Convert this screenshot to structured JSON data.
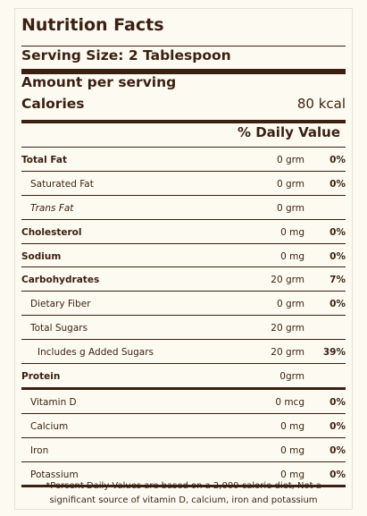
{
  "label": {
    "title": "Nutrition Facts",
    "serving_size": "Serving Size: 2 Tablespoon",
    "amount_per_serving": "Amount per serving",
    "calories_label": "Calories",
    "calories_value": "80 kcal",
    "daily_value_header": "% Daily Value",
    "rows": [
      {
        "name": "Total Fat",
        "amount": "0 grm",
        "percent": "0%"
      },
      {
        "name": "Saturated Fat",
        "amount": "0 grm",
        "percent": "0%"
      },
      {
        "name": "Trans Fat",
        "amount": "0 grm",
        "percent": ""
      },
      {
        "name": "Cholesterol",
        "amount": "0 mg",
        "percent": "0%"
      },
      {
        "name": "Sodium",
        "amount": "0 mg",
        "percent": "0%"
      },
      {
        "name": "Carbohydrates",
        "amount": "20 grm",
        "percent": "7%"
      },
      {
        "name": "Dietary Fiber",
        "amount": "0 grm",
        "percent": "0%"
      },
      {
        "name": "Total Sugars",
        "amount": "20 grm",
        "percent": ""
      },
      {
        "name": "Includes g Added Sugars",
        "amount": "20 grm",
        "percent": "39%"
      },
      {
        "name": "Protein",
        "amount": "0grm",
        "percent": ""
      },
      {
        "name": "Vitamin D",
        "amount": "0 mcg",
        "percent": "0%"
      },
      {
        "name": "Calcium",
        "amount": "0 mg",
        "percent": "0%"
      },
      {
        "name": "Iron",
        "amount": "0 mg",
        "percent": "0%"
      },
      {
        "name": "Potassium",
        "amount": "0 mg",
        "percent": "0%"
      }
    ],
    "footnote": "*Percent Daily Values are based on a 2,000 calorie diet, Not a significant source of vitamin D, calcium, iron and potassium"
  },
  "colors": {
    "text": "#3a1f12",
    "background": "#fdfbf1"
  }
}
